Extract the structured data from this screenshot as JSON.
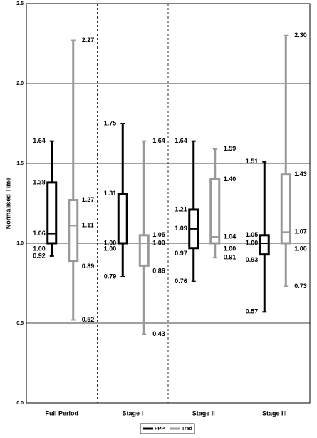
{
  "chart_data": {
    "type": "box",
    "y_label": "Normalised Time",
    "categories": [
      "Full Period",
      "Stage I",
      "Stage II",
      "Stage III"
    ],
    "ylim": [
      0,
      2.5
    ],
    "yticks": [
      {
        "value": 0,
        "label": "0.0"
      },
      0.5,
      {
        "value": 1,
        "label": "1.0"
      },
      1.5,
      {
        "value": 2,
        "label": "2.0"
      },
      2.5
    ],
    "grid": true,
    "legend": "bottom",
    "series": [
      {
        "name": "PPP",
        "color": "#000000",
        "boxes": [
          {
            "values": [
              0.92,
              1,
              1.06,
              1.38,
              1.64
            ],
            "value_labels": [
              "0.92",
              "1.00",
              "1.06",
              "1.38",
              "1.64"
            ]
          },
          {
            "values": [
              0.79,
              1,
              1,
              1.31,
              1.75
            ],
            "value_labels": [
              "0.79",
              "1.00",
              "1.00",
              "1.31",
              "1.75"
            ]
          },
          {
            "values": [
              0.76,
              0.97,
              1.09,
              1.21,
              1.64
            ],
            "value_labels": [
              "0.76",
              "0.97",
              "1.09",
              "1.21",
              "1.64"
            ]
          },
          {
            "values": [
              0.57,
              0.93,
              1,
              1.05,
              1.51
            ],
            "value_labels": [
              "0.57",
              "0.93",
              "1.00",
              "1.05",
              "1.51"
            ]
          }
        ]
      },
      {
        "name": "Trad",
        "color": "#999999",
        "boxes": [
          {
            "values": [
              0.52,
              0.89,
              1.11,
              1.27,
              2.27
            ],
            "value_labels": [
              "0.52",
              "0.89",
              "1.11",
              "1.27",
              "2.27"
            ]
          },
          {
            "values": [
              0.43,
              0.86,
              1,
              1.05,
              1.64
            ],
            "value_labels": [
              "0.43",
              "0.86",
              "1.00",
              "1.05",
              "1.64"
            ]
          },
          {
            "values": [
              0.91,
              1,
              1.04,
              1.4,
              1.59
            ],
            "value_labels": [
              "0.91",
              "1.00",
              "1.04",
              "1.40",
              "1.59"
            ]
          },
          {
            "values": [
              0.73,
              1,
              1.07,
              1.43,
              2.3
            ],
            "value_labels": [
              "0.73",
              "1.00",
              "1.07",
              "1.43",
              "2.30"
            ]
          }
        ]
      }
    ]
  }
}
